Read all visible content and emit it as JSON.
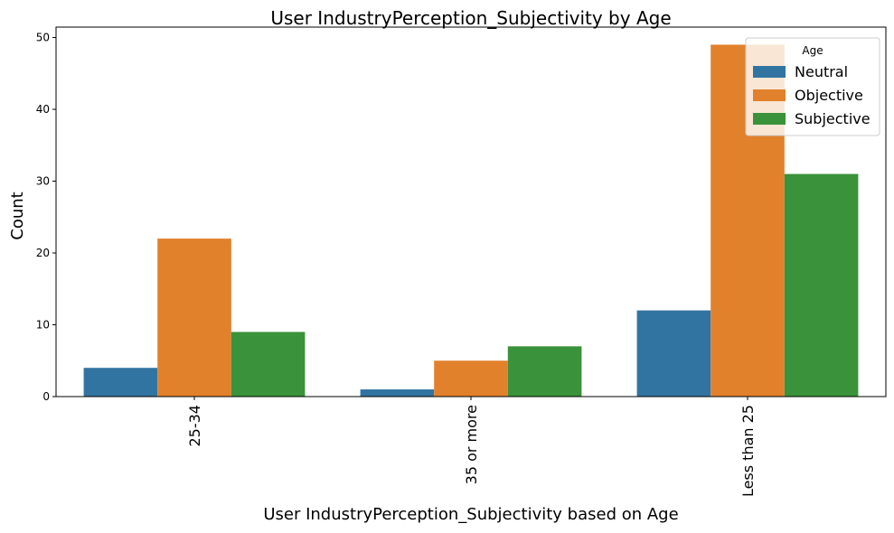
{
  "chart_data": {
    "type": "bar",
    "title": "User IndustryPerception_Subjectivity by Age",
    "xlabel": "User IndustryPerception_Subjectivity based on Age",
    "ylabel": "Count",
    "categories": [
      "25-34",
      "35 or more",
      "Less than 25"
    ],
    "series": [
      {
        "name": "Neutral",
        "color": "#3274a1",
        "values": [
          4,
          1,
          12
        ]
      },
      {
        "name": "Objective",
        "color": "#e1812c",
        "values": [
          22,
          5,
          49
        ]
      },
      {
        "name": "Subjective",
        "color": "#3a923a",
        "values": [
          9,
          7,
          31
        ]
      }
    ],
    "ylim": [
      0,
      51.45
    ],
    "yticks": [
      0,
      10,
      20,
      30,
      40,
      50
    ],
    "legend": {
      "title": "Age",
      "position": "top-right"
    },
    "grid": false
  }
}
